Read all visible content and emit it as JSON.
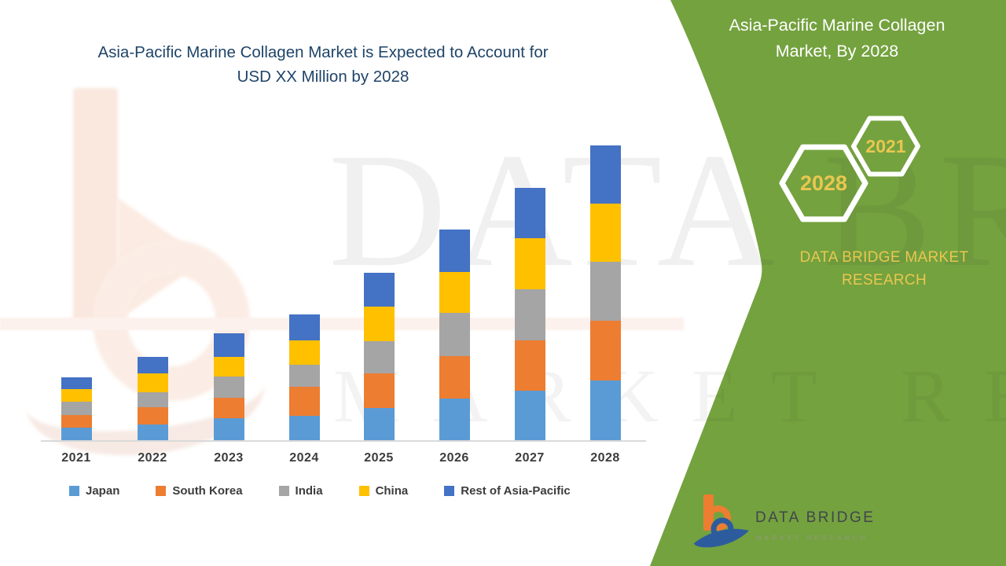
{
  "header": {
    "title_line1": "Asia-Pacific Marine Collagen Market is Expected to Account for",
    "title_line2": "USD XX Million by 2028"
  },
  "side_panel": {
    "title_line1": "Asia-Pacific Marine Collagen",
    "title_line2": "Market, By 2028",
    "hexagon_large_label": "2028",
    "hexagon_small_label": "2021",
    "brand_line1": "DATA BRIDGE MARKET",
    "brand_line2": "RESEARCH"
  },
  "logo": {
    "name": "DATA BRIDGE",
    "subtitle": "MARKET RESEARCH"
  },
  "watermark": {
    "line1": "DATA BRIDGE",
    "line2": "MARKET RESEARCH"
  },
  "colors": {
    "panel_green": "#74A23F",
    "gold": "#E9C750",
    "title_navy": "#1F4468",
    "axis_gray": "#DADADA",
    "label_gray": "#3C3C3C"
  },
  "chart_data": {
    "type": "bar",
    "stacked": true,
    "title": "Asia-Pacific Marine Collagen Market is Expected to Account for USD XX Million by 2028",
    "xlabel": "",
    "ylabel": "",
    "y_axis_labeled": false,
    "units": "relative (axis unlabeled; market value shown as USD XX Million)",
    "grid": false,
    "legend_position": "bottom",
    "categories": [
      "2021",
      "2022",
      "2023",
      "2024",
      "2025",
      "2026",
      "2027",
      "2028"
    ],
    "series": [
      {
        "name": "Japan",
        "color": "#5B9BD5",
        "values": [
          16,
          20,
          28,
          31,
          41,
          53,
          63,
          76
        ]
      },
      {
        "name": "South Korea",
        "color": "#ED7D31",
        "values": [
          16,
          22,
          26,
          37,
          44,
          54,
          64,
          76
        ]
      },
      {
        "name": "India",
        "color": "#A5A5A5",
        "values": [
          17,
          19,
          27,
          28,
          41,
          55,
          65,
          75
        ]
      },
      {
        "name": "China",
        "color": "#FFC000",
        "values": [
          16,
          24,
          25,
          31,
          44,
          52,
          65,
          74
        ]
      },
      {
        "name": "Rest of Asia-Pacific",
        "color": "#4472C4",
        "values": [
          15,
          21,
          30,
          33,
          43,
          54,
          64,
          74
        ]
      }
    ],
    "stack_totals": [
      80,
      106,
      136,
      160,
      213,
      268,
      321,
      375
    ]
  }
}
